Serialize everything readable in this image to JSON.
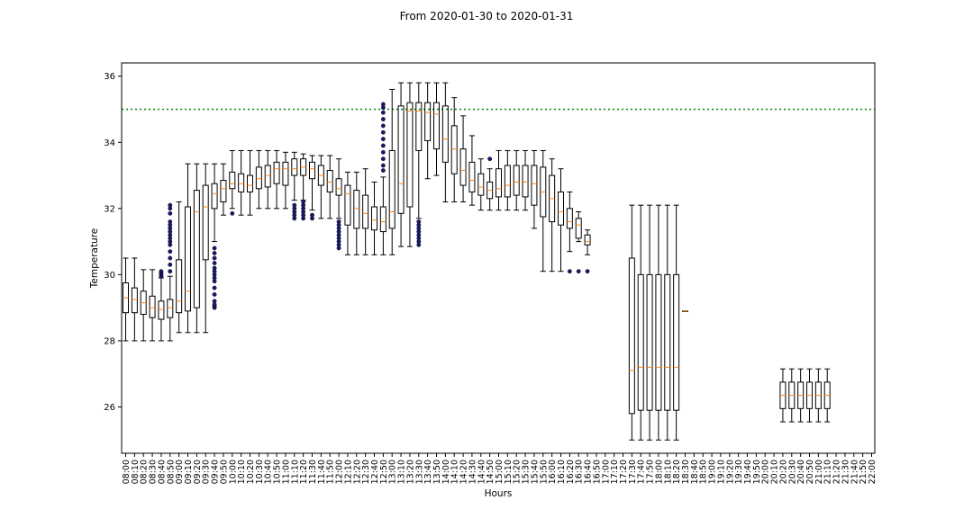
{
  "chart_data": {
    "type": "box",
    "title": "From 2020-01-30 to 2020-01-31",
    "xlabel": "Hours",
    "ylabel": "Temperature",
    "ylim": [
      24.6,
      36.4
    ],
    "yticks": [
      26,
      28,
      30,
      32,
      34,
      36
    ],
    "categories": [
      "08:00",
      "08:10",
      "08:20",
      "08:30",
      "08:40",
      "08:50",
      "09:00",
      "09:10",
      "09:20",
      "09:30",
      "09:40",
      "09:50",
      "10:00",
      "10:10",
      "10:20",
      "10:30",
      "10:40",
      "10:50",
      "11:00",
      "11:10",
      "11:20",
      "11:30",
      "11:40",
      "11:50",
      "12:00",
      "12:10",
      "12:20",
      "12:30",
      "12:40",
      "12:50",
      "13:00",
      "13:10",
      "13:20",
      "13:30",
      "13:40",
      "13:50",
      "14:00",
      "14:10",
      "14:20",
      "14:30",
      "14:40",
      "14:50",
      "15:00",
      "15:10",
      "15:20",
      "15:30",
      "15:40",
      "15:50",
      "16:00",
      "16:10",
      "16:20",
      "16:30",
      "16:40",
      "16:50",
      "17:00",
      "17:10",
      "17:20",
      "17:30",
      "17:40",
      "17:50",
      "18:00",
      "18:10",
      "18:20",
      "18:30",
      "18:40",
      "18:50",
      "19:00",
      "19:10",
      "19:20",
      "19:30",
      "19:40",
      "19:50",
      "20:00",
      "20:10",
      "20:20",
      "20:30",
      "20:40",
      "20:50",
      "21:00",
      "21:10",
      "21:20",
      "21:30",
      "21:40",
      "21:50",
      "22:00"
    ],
    "threshold": {
      "value": 35.0,
      "color": "#008000",
      "style": "dotted"
    },
    "colors": {
      "box": "#000000",
      "median": "#ff7f0e",
      "outlier": "#191970"
    },
    "boxes": [
      {
        "x": "08:00",
        "whislo": 28.0,
        "q1": 28.85,
        "med": 29.3,
        "q3": 29.75,
        "whishi": 30.5,
        "fliers": []
      },
      {
        "x": "08:10",
        "whislo": 28.0,
        "q1": 28.85,
        "med": 29.25,
        "q3": 29.6,
        "whishi": 30.5,
        "fliers": []
      },
      {
        "x": "08:20",
        "whislo": 28.0,
        "q1": 28.8,
        "med": 29.15,
        "q3": 29.5,
        "whishi": 30.15,
        "fliers": []
      },
      {
        "x": "08:30",
        "whislo": 28.0,
        "q1": 28.7,
        "med": 29.0,
        "q3": 29.35,
        "whishi": 30.15,
        "fliers": []
      },
      {
        "x": "08:40",
        "whislo": 28.0,
        "q1": 28.65,
        "med": 28.95,
        "q3": 29.2,
        "whishi": 29.9,
        "fliers": [
          29.95,
          30.0,
          30.05,
          30.1
        ]
      },
      {
        "x": "08:50",
        "whislo": 28.0,
        "q1": 28.7,
        "med": 29.0,
        "q3": 29.25,
        "whishi": 29.95,
        "fliers": [
          30.1,
          30.3,
          30.5,
          30.7,
          30.9,
          31.0,
          31.1,
          31.2,
          31.3,
          31.4,
          31.5,
          31.6,
          31.85,
          32.0,
          32.1
        ]
      },
      {
        "x": "09:00",
        "whislo": 28.25,
        "q1": 28.85,
        "med": 29.2,
        "q3": 30.45,
        "whishi": 32.2,
        "fliers": []
      },
      {
        "x": "09:10",
        "whislo": 28.25,
        "q1": 28.9,
        "med": 29.5,
        "q3": 32.05,
        "whishi": 33.35,
        "fliers": []
      },
      {
        "x": "09:20",
        "whislo": 28.25,
        "q1": 29.0,
        "med": 31.9,
        "q3": 32.55,
        "whishi": 33.35,
        "fliers": []
      },
      {
        "x": "09:30",
        "whislo": 28.25,
        "q1": 30.45,
        "med": 32.05,
        "q3": 32.7,
        "whishi": 33.35,
        "fliers": []
      },
      {
        "x": "09:40",
        "whislo": 31.0,
        "q1": 32.0,
        "med": 32.45,
        "q3": 32.75,
        "whishi": 33.35,
        "fliers": [
          29.0,
          29.05,
          29.1,
          29.2,
          29.4,
          29.6,
          29.8,
          29.9,
          30.0,
          30.1,
          30.2,
          30.35,
          30.5,
          30.65,
          30.8
        ]
      },
      {
        "x": "09:50",
        "whislo": 31.8,
        "q1": 32.2,
        "med": 32.6,
        "q3": 32.85,
        "whishi": 33.35,
        "fliers": []
      },
      {
        "x": "10:00",
        "whislo": 32.0,
        "q1": 32.6,
        "med": 32.75,
        "q3": 33.1,
        "whishi": 33.75,
        "fliers": [
          31.85
        ]
      },
      {
        "x": "10:10",
        "whislo": 31.8,
        "q1": 32.5,
        "med": 32.75,
        "q3": 33.05,
        "whishi": 33.75,
        "fliers": []
      },
      {
        "x": "10:20",
        "whislo": 31.8,
        "q1": 32.5,
        "med": 32.7,
        "q3": 33.0,
        "whishi": 33.75,
        "fliers": []
      },
      {
        "x": "10:30",
        "whislo": 32.0,
        "q1": 32.6,
        "med": 32.9,
        "q3": 33.25,
        "whishi": 33.75,
        "fliers": []
      },
      {
        "x": "10:40",
        "whislo": 32.0,
        "q1": 32.65,
        "med": 33.0,
        "q3": 33.3,
        "whishi": 33.75,
        "fliers": []
      },
      {
        "x": "10:50",
        "whislo": 32.0,
        "q1": 32.75,
        "med": 33.2,
        "q3": 33.4,
        "whishi": 33.75,
        "fliers": []
      },
      {
        "x": "11:00",
        "whislo": 32.0,
        "q1": 32.7,
        "med": 33.2,
        "q3": 33.4,
        "whishi": 33.7,
        "fliers": []
      },
      {
        "x": "11:10",
        "whislo": 32.25,
        "q1": 33.0,
        "med": 33.2,
        "q3": 33.5,
        "whishi": 33.7,
        "fliers": [
          31.7,
          31.8,
          31.9,
          32.0,
          32.1
        ]
      },
      {
        "x": "11:20",
        "whislo": 32.25,
        "q1": 33.0,
        "med": 33.25,
        "q3": 33.5,
        "whishi": 33.65,
        "fliers": [
          31.7,
          31.8,
          31.9,
          32.0,
          32.1,
          32.2
        ]
      },
      {
        "x": "11:30",
        "whislo": 31.95,
        "q1": 32.9,
        "med": 33.2,
        "q3": 33.4,
        "whishi": 33.6,
        "fliers": [
          31.7,
          31.8
        ]
      },
      {
        "x": "11:40",
        "whislo": 31.7,
        "q1": 32.7,
        "med": 33.0,
        "q3": 33.3,
        "whishi": 33.6,
        "fliers": []
      },
      {
        "x": "11:50",
        "whislo": 31.7,
        "q1": 32.5,
        "med": 32.8,
        "q3": 33.15,
        "whishi": 33.6,
        "fliers": []
      },
      {
        "x": "12:00",
        "whislo": 31.7,
        "q1": 32.4,
        "med": 32.6,
        "q3": 32.9,
        "whishi": 33.5,
        "fliers": [
          30.8,
          30.9,
          31.0,
          31.1,
          31.2,
          31.3,
          31.4,
          31.5,
          31.6
        ]
      },
      {
        "x": "12:10",
        "whislo": 30.6,
        "q1": 31.5,
        "med": 32.45,
        "q3": 32.7,
        "whishi": 33.1,
        "fliers": []
      },
      {
        "x": "12:20",
        "whislo": 30.6,
        "q1": 31.4,
        "med": 32.0,
        "q3": 32.55,
        "whishi": 33.1,
        "fliers": []
      },
      {
        "x": "12:30",
        "whislo": 30.6,
        "q1": 31.4,
        "med": 31.85,
        "q3": 32.4,
        "whishi": 33.2,
        "fliers": []
      },
      {
        "x": "12:40",
        "whislo": 30.6,
        "q1": 31.35,
        "med": 31.65,
        "q3": 32.05,
        "whishi": 32.8,
        "fliers": []
      },
      {
        "x": "12:50",
        "whislo": 30.6,
        "q1": 31.3,
        "med": 31.6,
        "q3": 32.05,
        "whishi": 32.95,
        "fliers": [
          33.15,
          33.3,
          33.5,
          33.7,
          33.9,
          34.1,
          34.3,
          34.5,
          34.7,
          34.9,
          35.05,
          35.15
        ]
      },
      {
        "x": "13:00",
        "whislo": 30.6,
        "q1": 31.4,
        "med": 31.9,
        "q3": 33.75,
        "whishi": 35.6,
        "fliers": []
      },
      {
        "x": "13:10",
        "whislo": 30.85,
        "q1": 31.85,
        "med": 32.75,
        "q3": 35.1,
        "whishi": 35.8,
        "fliers": []
      },
      {
        "x": "13:20",
        "whislo": 30.85,
        "q1": 32.05,
        "med": 34.95,
        "q3": 35.2,
        "whishi": 35.8,
        "fliers": []
      },
      {
        "x": "13:30",
        "whislo": 31.7,
        "q1": 33.75,
        "med": 34.95,
        "q3": 35.2,
        "whishi": 35.8,
        "fliers": [
          30.9,
          31.0,
          31.1,
          31.2,
          31.3,
          31.4,
          31.5,
          31.6
        ]
      },
      {
        "x": "13:40",
        "whislo": 32.9,
        "q1": 34.05,
        "med": 34.9,
        "q3": 35.2,
        "whishi": 35.8,
        "fliers": []
      },
      {
        "x": "13:50",
        "whislo": 33.0,
        "q1": 33.8,
        "med": 34.85,
        "q3": 35.2,
        "whishi": 35.8,
        "fliers": []
      },
      {
        "x": "14:00",
        "whislo": 32.2,
        "q1": 33.4,
        "med": 34.1,
        "q3": 35.1,
        "whishi": 35.8,
        "fliers": []
      },
      {
        "x": "14:10",
        "whislo": 32.2,
        "q1": 33.05,
        "med": 33.8,
        "q3": 34.5,
        "whishi": 35.35,
        "fliers": []
      },
      {
        "x": "14:20",
        "whislo": 32.2,
        "q1": 32.7,
        "med": 33.15,
        "q3": 33.8,
        "whishi": 34.8,
        "fliers": []
      },
      {
        "x": "14:30",
        "whislo": 32.1,
        "q1": 32.5,
        "med": 32.85,
        "q3": 33.4,
        "whishi": 34.2,
        "fliers": []
      },
      {
        "x": "14:40",
        "whislo": 31.95,
        "q1": 32.4,
        "med": 32.65,
        "q3": 33.05,
        "whishi": 33.5,
        "fliers": []
      },
      {
        "x": "14:50",
        "whislo": 31.95,
        "q1": 32.3,
        "med": 32.55,
        "q3": 32.8,
        "whishi": 33.2,
        "fliers": [
          33.5
        ]
      },
      {
        "x": "15:00",
        "whislo": 31.95,
        "q1": 32.35,
        "med": 32.6,
        "q3": 33.2,
        "whishi": 33.75,
        "fliers": []
      },
      {
        "x": "15:10",
        "whislo": 31.95,
        "q1": 32.35,
        "med": 32.7,
        "q3": 33.3,
        "whishi": 33.75,
        "fliers": []
      },
      {
        "x": "15:20",
        "whislo": 31.95,
        "q1": 32.4,
        "med": 32.8,
        "q3": 33.3,
        "whishi": 33.75,
        "fliers": []
      },
      {
        "x": "15:30",
        "whislo": 31.95,
        "q1": 32.35,
        "med": 32.8,
        "q3": 33.3,
        "whishi": 33.75,
        "fliers": []
      },
      {
        "x": "15:40",
        "whislo": 31.4,
        "q1": 32.1,
        "med": 32.75,
        "q3": 33.3,
        "whishi": 33.75,
        "fliers": []
      },
      {
        "x": "15:50",
        "whislo": 30.1,
        "q1": 31.75,
        "med": 32.5,
        "q3": 33.25,
        "whishi": 33.75,
        "fliers": []
      },
      {
        "x": "16:00",
        "whislo": 30.1,
        "q1": 31.6,
        "med": 32.3,
        "q3": 33.0,
        "whishi": 33.5,
        "fliers": []
      },
      {
        "x": "16:10",
        "whislo": 30.1,
        "q1": 31.5,
        "med": 31.9,
        "q3": 32.5,
        "whishi": 33.2,
        "fliers": []
      },
      {
        "x": "16:20",
        "whislo": 30.7,
        "q1": 31.4,
        "med": 31.6,
        "q3": 32.0,
        "whishi": 32.5,
        "fliers": [
          30.1
        ]
      },
      {
        "x": "16:30",
        "whislo": 31.0,
        "q1": 31.1,
        "med": 31.5,
        "q3": 31.7,
        "whishi": 31.9,
        "fliers": [
          30.1
        ]
      },
      {
        "x": "16:40",
        "whislo": 30.6,
        "q1": 30.9,
        "med": 31.0,
        "q3": 31.2,
        "whishi": 31.35,
        "fliers": [
          30.1
        ]
      },
      {
        "x": "16:50",
        "empty": true
      },
      {
        "x": "17:00",
        "empty": true
      },
      {
        "x": "17:10",
        "empty": true
      },
      {
        "x": "17:20",
        "empty": true
      },
      {
        "x": "17:30",
        "whislo": 25.0,
        "q1": 25.8,
        "med": 27.1,
        "q3": 30.5,
        "whishi": 32.1,
        "fliers": []
      },
      {
        "x": "17:40",
        "whislo": 25.0,
        "q1": 25.9,
        "med": 27.2,
        "q3": 30.0,
        "whishi": 32.1,
        "fliers": []
      },
      {
        "x": "17:50",
        "whislo": 25.0,
        "q1": 25.9,
        "med": 27.2,
        "q3": 30.0,
        "whishi": 32.1,
        "fliers": []
      },
      {
        "x": "18:00",
        "whislo": 25.0,
        "q1": 25.9,
        "med": 27.2,
        "q3": 30.0,
        "whishi": 32.1,
        "fliers": []
      },
      {
        "x": "18:10",
        "whislo": 25.0,
        "q1": 25.9,
        "med": 27.2,
        "q3": 30.0,
        "whishi": 32.1,
        "fliers": []
      },
      {
        "x": "18:20",
        "whislo": 25.0,
        "q1": 25.9,
        "med": 27.2,
        "q3": 30.0,
        "whishi": 32.1,
        "fliers": []
      },
      {
        "x": "18:30",
        "whislo": 28.9,
        "q1": 28.9,
        "med": 28.9,
        "q3": 28.9,
        "whishi": 28.9,
        "fliers": []
      },
      {
        "x": "18:40",
        "empty": true
      },
      {
        "x": "18:50",
        "empty": true
      },
      {
        "x": "19:00",
        "empty": true
      },
      {
        "x": "19:10",
        "empty": true
      },
      {
        "x": "19:20",
        "empty": true
      },
      {
        "x": "19:30",
        "empty": true
      },
      {
        "x": "19:40",
        "empty": true
      },
      {
        "x": "19:50",
        "empty": true
      },
      {
        "x": "20:00",
        "empty": true
      },
      {
        "x": "20:10",
        "empty": true
      },
      {
        "x": "20:20",
        "whislo": 25.55,
        "q1": 25.95,
        "med": 26.35,
        "q3": 26.75,
        "whishi": 27.15,
        "fliers": []
      },
      {
        "x": "20:30",
        "whislo": 25.55,
        "q1": 25.95,
        "med": 26.35,
        "q3": 26.75,
        "whishi": 27.15,
        "fliers": []
      },
      {
        "x": "20:40",
        "whislo": 25.55,
        "q1": 25.95,
        "med": 26.35,
        "q3": 26.75,
        "whishi": 27.15,
        "fliers": []
      },
      {
        "x": "20:50",
        "whislo": 25.55,
        "q1": 25.95,
        "med": 26.35,
        "q3": 26.75,
        "whishi": 27.15,
        "fliers": []
      },
      {
        "x": "21:00",
        "whislo": 25.55,
        "q1": 25.95,
        "med": 26.35,
        "q3": 26.75,
        "whishi": 27.15,
        "fliers": []
      },
      {
        "x": "21:10",
        "whislo": 25.55,
        "q1": 25.95,
        "med": 26.35,
        "q3": 26.75,
        "whishi": 27.15,
        "fliers": []
      },
      {
        "x": "21:20",
        "empty": true
      },
      {
        "x": "21:30",
        "empty": true
      },
      {
        "x": "21:40",
        "empty": true
      },
      {
        "x": "21:50",
        "empty": true
      },
      {
        "x": "22:00",
        "empty": true
      }
    ]
  }
}
